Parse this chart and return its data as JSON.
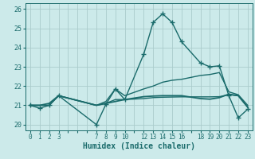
{
  "xlabel": "Humidex (Indice chaleur)",
  "bg_color": "#cceaea",
  "grid_color": "#aacccc",
  "line_color": "#1a6b6b",
  "xtick_labels": [
    "0",
    "1",
    "2",
    "3",
    "",
    "",
    "",
    "7",
    "8",
    "9",
    "10",
    "",
    "12",
    "13",
    "14",
    "15",
    "16",
    "",
    "18",
    "19",
    "20",
    "21",
    "22",
    "23"
  ],
  "n_xpoints": 23,
  "ylim": [
    19.7,
    26.3
  ],
  "yticks": [
    20,
    21,
    22,
    23,
    24,
    25,
    26
  ],
  "lines": [
    {
      "x": [
        0,
        1,
        2,
        3,
        7,
        8,
        9,
        10,
        12,
        13,
        14,
        15,
        16,
        18,
        19,
        20,
        21,
        22,
        23
      ],
      "y": [
        21.0,
        20.85,
        21.0,
        21.5,
        20.0,
        21.05,
        21.85,
        21.3,
        23.65,
        25.3,
        25.75,
        25.3,
        24.3,
        23.2,
        23.0,
        23.05,
        21.5,
        20.35,
        20.8
      ],
      "marker": "+",
      "ms": 4,
      "lw": 1.0
    },
    {
      "x": [
        0,
        1,
        2,
        3,
        7,
        8,
        9,
        10,
        12,
        13,
        14,
        15,
        16,
        18,
        19,
        20,
        21,
        22,
        23
      ],
      "y": [
        21.0,
        21.0,
        21.0,
        21.5,
        21.0,
        21.2,
        21.85,
        21.5,
        21.85,
        22.0,
        22.2,
        22.3,
        22.35,
        22.55,
        22.6,
        22.7,
        21.7,
        21.55,
        21.0
      ],
      "marker": null,
      "ms": 0,
      "lw": 1.0
    },
    {
      "x": [
        0,
        1,
        2,
        3,
        7,
        8,
        9,
        10,
        12,
        13,
        14,
        15,
        16,
        18,
        19,
        20,
        21,
        22,
        23
      ],
      "y": [
        21.0,
        21.0,
        21.0,
        21.5,
        21.0,
        21.1,
        21.3,
        21.3,
        21.35,
        21.4,
        21.42,
        21.43,
        21.44,
        21.44,
        21.44,
        21.45,
        21.55,
        21.5,
        20.9
      ],
      "marker": null,
      "ms": 0,
      "lw": 1.0
    },
    {
      "x": [
        0,
        1,
        2,
        3,
        7,
        8,
        9,
        10,
        12,
        13,
        14,
        15,
        16,
        18,
        19,
        20,
        21,
        22,
        23
      ],
      "y": [
        21.0,
        21.0,
        21.1,
        21.5,
        21.0,
        21.1,
        21.2,
        21.3,
        21.45,
        21.48,
        21.5,
        21.5,
        21.5,
        21.35,
        21.32,
        21.4,
        21.58,
        21.5,
        20.9
      ],
      "marker": null,
      "ms": 0,
      "lw": 1.3
    }
  ]
}
